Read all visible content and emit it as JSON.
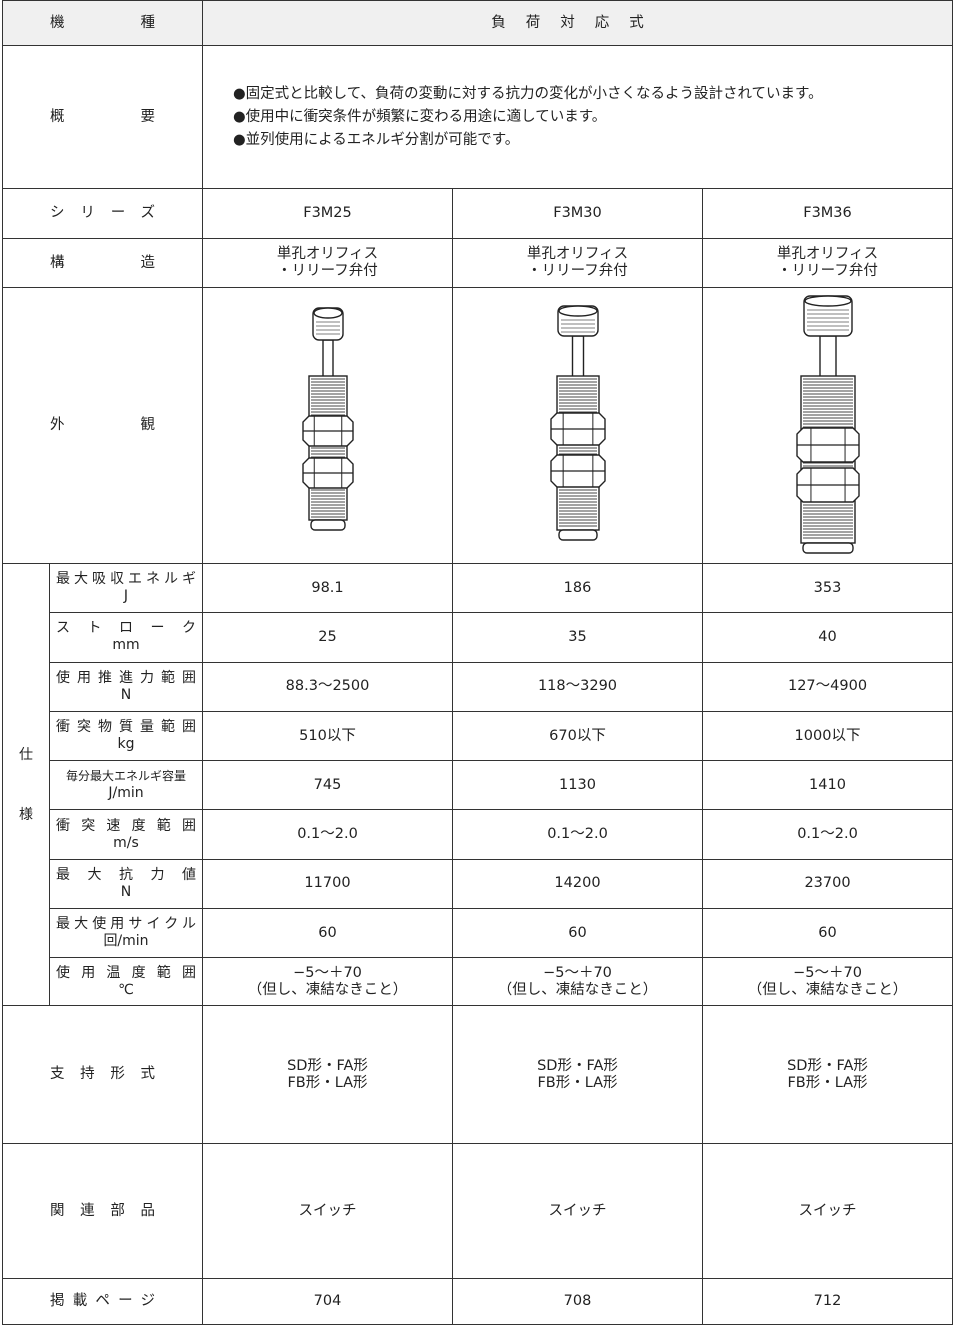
{
  "header": {
    "label": "機種",
    "value": "負荷対応式"
  },
  "overview": {
    "label": "概要",
    "lines": [
      "●固定式と比較して、負荷の変動に対する抗力の変化が小さくなるよう設計されています。",
      "●使用中に衝突条件が頻繁に変わる用途に適しています。",
      "●並列使用によるエネルギ分割が可能です。"
    ]
  },
  "series": {
    "label": "シリーズ",
    "values": [
      "F3M25",
      "F3M30",
      "F3M36"
    ]
  },
  "structure": {
    "label": "構造",
    "values": [
      [
        "単孔オリフィス",
        "・リリーフ弁付"
      ],
      [
        "単孔オリフィス",
        "・リリーフ弁付"
      ],
      [
        "単孔オリフィス",
        "・リリーフ弁付"
      ]
    ]
  },
  "appearance": {
    "label": "外観"
  },
  "specs": {
    "group": [
      "仕",
      "様"
    ],
    "rows": [
      {
        "label": "最大吸収エネルギ",
        "unit": "J",
        "values": [
          "98.1",
          "186",
          "353"
        ]
      },
      {
        "label": "ストローク",
        "unit": "mm",
        "values": [
          "25",
          "35",
          "40"
        ]
      },
      {
        "label": "使用推進力範囲",
        "unit": "N",
        "values": [
          "88.3〜2500",
          "118〜3290",
          "127〜4900"
        ]
      },
      {
        "label": "衝突物質量範囲",
        "unit": "kg",
        "values": [
          "510以下",
          "670以下",
          "1000以下"
        ]
      },
      {
        "label": "毎分最大エネルギ容量",
        "unit": "J/min",
        "values": [
          "745",
          "1130",
          "1410"
        ]
      },
      {
        "label": "衝突速度範囲",
        "unit": "m/s",
        "values": [
          "0.1〜2.0",
          "0.1〜2.0",
          "0.1〜2.0"
        ]
      },
      {
        "label": "最大抗力値",
        "unit": "N",
        "values": [
          "11700",
          "14200",
          "23700"
        ]
      },
      {
        "label": "最大使用サイクル",
        "unit": "回/min",
        "values": [
          "60",
          "60",
          "60"
        ]
      },
      {
        "label": "使用温度範囲",
        "unit": "℃",
        "values": [
          [
            "−5〜＋70",
            "（但し、凍結なきこと）"
          ],
          [
            "−5〜＋70",
            "（但し、凍結なきこと）"
          ],
          [
            "−5〜＋70",
            "（但し、凍結なきこと）"
          ]
        ]
      }
    ]
  },
  "mounting": {
    "label": "支持形式",
    "values": [
      [
        "SD形・FA形",
        "FB形・LA形"
      ],
      [
        "SD形・FA形",
        "FB形・LA形"
      ],
      [
        "SD形・FA形",
        "FB形・LA形"
      ]
    ]
  },
  "related": {
    "label": "関連部品",
    "values": [
      "スイッチ",
      "スイッチ",
      "スイッチ"
    ]
  },
  "page": {
    "label": "掲載ページ",
    "values": [
      "704",
      "708",
      "712"
    ]
  }
}
